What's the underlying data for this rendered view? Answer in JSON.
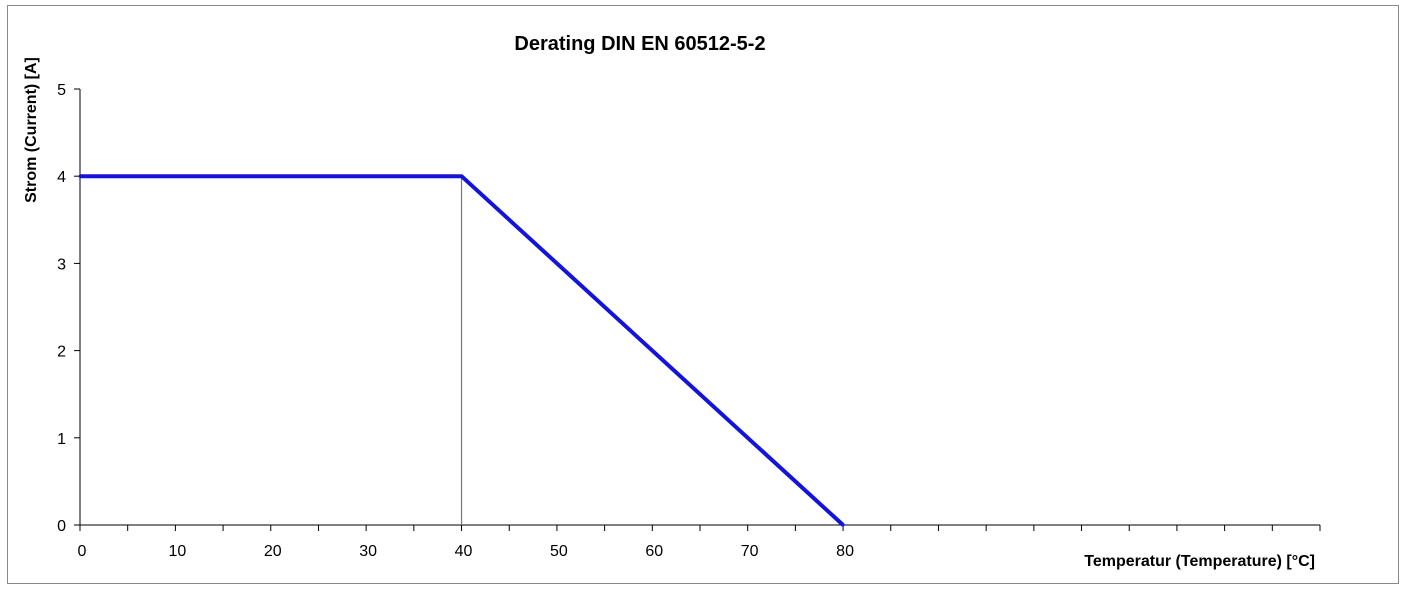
{
  "chart_data": {
    "type": "line",
    "title": "Derating DIN EN 60512-5-2",
    "xlabel": "Temperatur (Temperature) [°C]",
    "ylabel": "Strom (Current) [A]",
    "xlim": [
      0,
      130
    ],
    "ylim": [
      0,
      5
    ],
    "x_tick_labels": [
      0,
      10,
      20,
      30,
      40,
      50,
      60,
      70,
      80
    ],
    "x_minor_ticks": [
      5,
      15,
      25,
      35,
      45,
      55,
      65,
      75,
      85,
      90,
      95,
      100,
      105,
      110,
      115,
      120,
      125,
      130
    ],
    "y_tick_labels": [
      0,
      1,
      2,
      3,
      4,
      5
    ],
    "grid": false,
    "series": [
      {
        "color": "#1414d8",
        "x": [
          0,
          40,
          80
        ],
        "y": [
          4,
          4,
          0
        ]
      }
    ],
    "reference_lines": [
      {
        "x": 40,
        "y_from": 0,
        "y_to": 4,
        "color": "#7a7a7a"
      }
    ]
  }
}
